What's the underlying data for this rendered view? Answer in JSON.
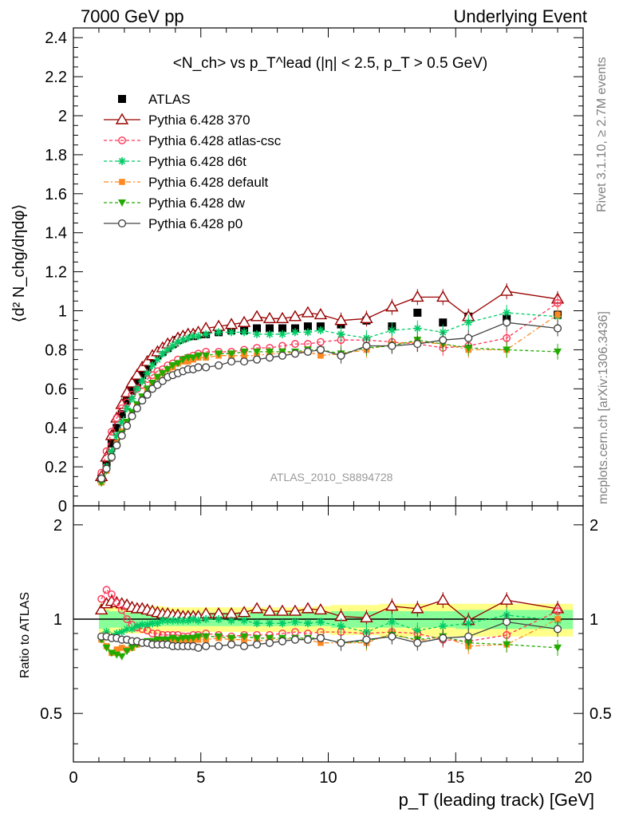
{
  "header": {
    "left": "7000 GeV pp",
    "right": "Underlying Event"
  },
  "side_labels": {
    "rivet": "Rivet 3.1.10, ≥ 2.7M events",
    "mcplots": "mcplots.cern.ch [arXiv:1306.3436]"
  },
  "watermark": "ATLAS_2010_S8894728",
  "colors": {
    "ATLAS": "#000000",
    "370": "#990000",
    "atlas-csc": "#ff3355",
    "d6t": "#00cc66",
    "default": "#ff8822",
    "dw": "#22aa00",
    "p0": "#444444"
  },
  "chart_data": [
    {
      "type": "scatter",
      "title": "<N_ch> vs p_T^lead (|η| < 2.5, p_T > 0.5 GeV)",
      "ylabel": "⟨d² N_chg/dηdφ⟩",
      "xlim": [
        0,
        20
      ],
      "ylim": [
        0,
        2.45
      ],
      "yticks": [
        "0.2",
        "0.4",
        "0.6",
        "0.8",
        "1",
        "1.2",
        "1.4",
        "1.6",
        "1.8",
        "2",
        "2.2",
        "2.4"
      ],
      "x": [
        1.1,
        1.3,
        1.5,
        1.7,
        1.9,
        2.1,
        2.3,
        2.5,
        2.7,
        2.9,
        3.1,
        3.3,
        3.5,
        3.7,
        3.9,
        4.1,
        4.3,
        4.5,
        4.7,
        4.9,
        5.2,
        5.7,
        6.2,
        6.7,
        7.2,
        7.7,
        8.2,
        8.7,
        9.2,
        9.7,
        10.5,
        11.5,
        12.5,
        13.5,
        14.5,
        15.5,
        17,
        19
      ],
      "series": [
        {
          "name": "ATLAS",
          "key": "ATLAS",
          "values": [
            0.14,
            0.22,
            0.32,
            0.4,
            0.47,
            0.54,
            0.59,
            0.63,
            0.67,
            0.71,
            0.74,
            0.77,
            0.79,
            0.81,
            0.83,
            0.85,
            0.86,
            0.87,
            0.87,
            0.88,
            0.88,
            0.89,
            0.9,
            0.9,
            0.91,
            0.91,
            0.91,
            0.91,
            0.92,
            0.92,
            0.93,
            0.95,
            0.92,
            0.99,
            0.94,
            0.97,
            0.96,
            0.98
          ]
        },
        {
          "name": "Pythia 6.428 370",
          "key": "370",
          "values": [
            0.15,
            0.25,
            0.36,
            0.45,
            0.52,
            0.58,
            0.63,
            0.67,
            0.71,
            0.74,
            0.77,
            0.79,
            0.81,
            0.83,
            0.84,
            0.86,
            0.87,
            0.88,
            0.88,
            0.89,
            0.91,
            0.92,
            0.93,
            0.94,
            0.97,
            0.96,
            0.96,
            0.97,
            0.99,
            0.98,
            0.95,
            0.96,
            1.02,
            1.07,
            1.07,
            0.97,
            1.1,
            1.06
          ]
        },
        {
          "name": "Pythia 6.428 atlas-csc",
          "key": "atlas-csc",
          "values": [
            0.17,
            0.28,
            0.38,
            0.45,
            0.5,
            0.53,
            0.57,
            0.6,
            0.62,
            0.65,
            0.67,
            0.69,
            0.7,
            0.72,
            0.73,
            0.75,
            0.75,
            0.76,
            0.77,
            0.78,
            0.79,
            0.79,
            0.79,
            0.8,
            0.81,
            0.81,
            0.82,
            0.83,
            0.83,
            0.84,
            0.85,
            0.85,
            0.84,
            0.83,
            0.81,
            0.82,
            0.86,
            1.04
          ]
        },
        {
          "name": "Pythia 6.428 d6t",
          "key": "d6t",
          "values": [
            0.12,
            0.2,
            0.28,
            0.36,
            0.43,
            0.5,
            0.55,
            0.6,
            0.64,
            0.68,
            0.72,
            0.75,
            0.78,
            0.8,
            0.82,
            0.84,
            0.85,
            0.86,
            0.87,
            0.87,
            0.88,
            0.89,
            0.89,
            0.89,
            0.88,
            0.88,
            0.88,
            0.89,
            0.89,
            0.9,
            0.88,
            0.86,
            0.9,
            0.91,
            0.89,
            0.94,
            0.99,
            0.97
          ]
        },
        {
          "name": "Pythia 6.428 default",
          "key": "default",
          "values": [
            0.12,
            0.18,
            0.25,
            0.32,
            0.38,
            0.43,
            0.48,
            0.52,
            0.56,
            0.6,
            0.63,
            0.66,
            0.68,
            0.7,
            0.71,
            0.73,
            0.74,
            0.74,
            0.75,
            0.76,
            0.76,
            0.77,
            0.77,
            0.77,
            0.77,
            0.78,
            0.78,
            0.79,
            0.79,
            0.77,
            0.78,
            0.8,
            0.83,
            0.84,
            0.83,
            0.8,
            0.8,
            0.98
          ]
        },
        {
          "name": "Pythia 6.428 dw",
          "key": "dw",
          "values": [
            0.12,
            0.18,
            0.25,
            0.31,
            0.37,
            0.43,
            0.48,
            0.52,
            0.56,
            0.6,
            0.63,
            0.66,
            0.68,
            0.7,
            0.72,
            0.73,
            0.75,
            0.76,
            0.76,
            0.77,
            0.77,
            0.78,
            0.78,
            0.79,
            0.79,
            0.79,
            0.79,
            0.79,
            0.8,
            0.8,
            0.78,
            0.81,
            0.82,
            0.85,
            0.83,
            0.81,
            0.8,
            0.79
          ]
        },
        {
          "name": "Pythia 6.428 p0",
          "key": "p0",
          "values": [
            0.14,
            0.19,
            0.25,
            0.31,
            0.36,
            0.41,
            0.46,
            0.5,
            0.54,
            0.57,
            0.6,
            0.62,
            0.64,
            0.66,
            0.67,
            0.68,
            0.69,
            0.7,
            0.7,
            0.71,
            0.71,
            0.72,
            0.74,
            0.74,
            0.75,
            0.76,
            0.77,
            0.78,
            0.79,
            0.8,
            0.77,
            0.82,
            0.82,
            0.83,
            0.85,
            0.86,
            0.94,
            0.91
          ]
        }
      ]
    },
    {
      "type": "scatter",
      "ylabel": "Ratio to ATLAS",
      "xlabel": "p_T (leading track) [GeV]",
      "xlim": [
        0,
        20
      ],
      "ylim": [
        0.35,
        2.3
      ],
      "yscale": "log",
      "xticks": [
        "0",
        "5",
        "10",
        "15",
        "20"
      ],
      "yticks": [
        "0.5",
        "1",
        "2"
      ],
      "x": [
        1.1,
        1.3,
        1.5,
        1.7,
        1.9,
        2.1,
        2.3,
        2.5,
        2.7,
        2.9,
        3.1,
        3.3,
        3.5,
        3.7,
        3.9,
        4.1,
        4.3,
        4.5,
        4.7,
        4.9,
        5.2,
        5.7,
        6.2,
        6.7,
        7.2,
        7.7,
        8.2,
        8.7,
        9.2,
        9.7,
        10.5,
        11.5,
        12.5,
        13.5,
        14.5,
        15.5,
        17,
        19
      ],
      "band_inner": [
        0.93,
        0.93,
        0.94,
        0.94,
        0.94,
        0.95,
        0.95,
        0.95,
        0.95,
        0.95,
        0.95,
        0.95,
        0.95,
        0.95,
        0.95,
        0.95,
        0.95,
        0.95,
        0.95,
        0.95,
        0.95,
        0.95,
        0.95,
        0.95,
        0.95,
        0.95,
        0.95,
        0.95,
        0.95,
        0.95,
        0.94,
        0.94,
        0.94,
        0.94,
        0.94,
        0.93,
        0.93,
        0.93
      ],
      "band_outer": [
        0.88,
        0.88,
        0.89,
        0.89,
        0.9,
        0.9,
        0.9,
        0.9,
        0.9,
        0.9,
        0.9,
        0.9,
        0.9,
        0.91,
        0.91,
        0.91,
        0.91,
        0.91,
        0.91,
        0.91,
        0.91,
        0.91,
        0.91,
        0.91,
        0.91,
        0.91,
        0.91,
        0.91,
        0.91,
        0.9,
        0.89,
        0.89,
        0.88,
        0.88,
        0.88,
        0.88,
        0.88,
        0.88
      ],
      "series": [
        {
          "name": "Pythia 6.428 370",
          "key": "370",
          "values": [
            1.07,
            1.12,
            1.14,
            1.13,
            1.12,
            1.11,
            1.09,
            1.08,
            1.08,
            1.07,
            1.06,
            1.05,
            1.04,
            1.04,
            1.03,
            1.03,
            1.02,
            1.02,
            1.02,
            1.02,
            1.04,
            1.04,
            1.04,
            1.05,
            1.08,
            1.06,
            1.06,
            1.06,
            1.08,
            1.07,
            1.02,
            1.01,
            1.1,
            1.08,
            1.15,
            0.99,
            1.15,
            1.08
          ]
        },
        {
          "name": "Pythia 6.428 atlas-csc",
          "key": "atlas-csc",
          "values": [
            1.16,
            1.24,
            1.2,
            1.13,
            1.07,
            1.0,
            0.96,
            0.94,
            0.93,
            0.92,
            0.9,
            0.9,
            0.89,
            0.89,
            0.89,
            0.89,
            0.88,
            0.88,
            0.89,
            0.89,
            0.9,
            0.89,
            0.88,
            0.89,
            0.89,
            0.89,
            0.9,
            0.91,
            0.9,
            0.91,
            0.91,
            0.9,
            0.91,
            0.9,
            0.86,
            0.85,
            0.89,
            1.06
          ]
        },
        {
          "name": "Pythia 6.428 d6t",
          "key": "d6t",
          "values": [
            0.87,
            0.91,
            0.88,
            0.9,
            0.91,
            0.93,
            0.93,
            0.95,
            0.96,
            0.96,
            0.97,
            0.97,
            0.99,
            0.99,
            0.99,
            0.99,
            0.99,
            0.99,
            1.0,
            0.99,
            1.0,
            1.0,
            0.99,
            0.99,
            0.97,
            0.97,
            0.97,
            0.98,
            0.97,
            0.98,
            0.95,
            0.91,
            0.98,
            0.92,
            0.95,
            0.97,
            1.03,
            0.99
          ]
        },
        {
          "name": "Pythia 6.428 default",
          "key": "default",
          "values": [
            0.86,
            0.82,
            0.78,
            0.8,
            0.81,
            0.8,
            0.81,
            0.83,
            0.84,
            0.85,
            0.85,
            0.86,
            0.86,
            0.86,
            0.86,
            0.86,
            0.86,
            0.85,
            0.86,
            0.86,
            0.86,
            0.87,
            0.86,
            0.86,
            0.85,
            0.86,
            0.86,
            0.87,
            0.86,
            0.84,
            0.84,
            0.84,
            0.9,
            0.85,
            0.88,
            0.82,
            0.83,
            1.0
          ]
        },
        {
          "name": "Pythia 6.428 dw",
          "key": "dw",
          "values": [
            0.86,
            0.81,
            0.78,
            0.77,
            0.76,
            0.79,
            0.81,
            0.83,
            0.84,
            0.85,
            0.85,
            0.86,
            0.86,
            0.86,
            0.87,
            0.86,
            0.87,
            0.87,
            0.87,
            0.88,
            0.88,
            0.88,
            0.87,
            0.88,
            0.87,
            0.87,
            0.87,
            0.87,
            0.87,
            0.87,
            0.84,
            0.85,
            0.89,
            0.86,
            0.88,
            0.84,
            0.83,
            0.81
          ]
        },
        {
          "name": "Pythia 6.428 p0",
          "key": "p0",
          "values": [
            0.88,
            0.88,
            0.87,
            0.87,
            0.86,
            0.86,
            0.85,
            0.85,
            0.84,
            0.84,
            0.83,
            0.83,
            0.83,
            0.83,
            0.82,
            0.82,
            0.82,
            0.82,
            0.82,
            0.81,
            0.82,
            0.82,
            0.83,
            0.82,
            0.83,
            0.84,
            0.85,
            0.86,
            0.86,
            0.87,
            0.84,
            0.86,
            0.88,
            0.84,
            0.87,
            0.88,
            0.98,
            0.93
          ]
        }
      ]
    }
  ]
}
